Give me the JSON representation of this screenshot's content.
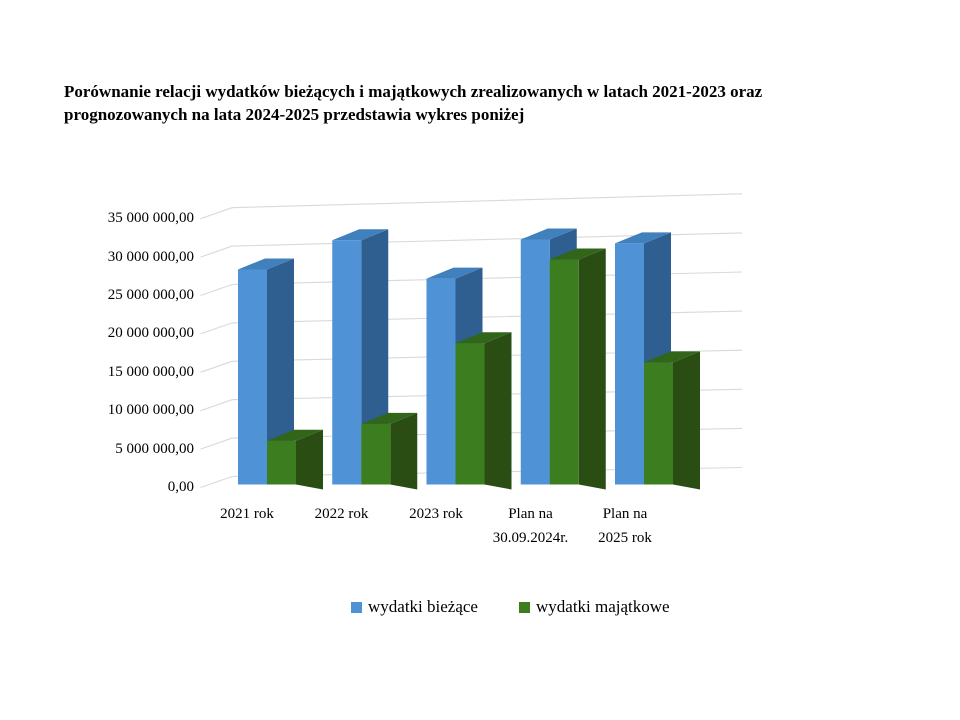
{
  "page": {
    "background": "#ffffff",
    "title_lines": [
      "Porównanie relacji wydatków bieżących i majątkowych zrealizowanych w latach 2021-2023 oraz",
      "prognozowanych na lata 2024-2025 przedstawia wykres poniżej"
    ]
  },
  "chart_data": {
    "type": "bar",
    "style": "3d-clustered-column",
    "title": "",
    "xlabel": "",
    "ylabel": "",
    "categories": [
      "2021 rok",
      "2022 rok",
      "2023 rok",
      "Plan na\n30.09.2024r.",
      "Plan na\n2025 rok"
    ],
    "series": [
      {
        "name": "wydatki bieżące",
        "color": "#4F92D5",
        "color_top": "#4080BC",
        "color_side": "#2F5E90",
        "values": [
          28000000,
          31800000,
          26800000,
          31900000,
          31400000
        ]
      },
      {
        "name": "wydatki majątkowe",
        "color": "#3C7D20",
        "color_top": "#30651A",
        "color_side": "#2A4D13",
        "values": [
          5700000,
          7900000,
          18400000,
          29300000,
          15900000
        ]
      }
    ],
    "y_ticks": [
      "35 000 000,00",
      "30 000 000,00",
      "25 000 000,00",
      "20 000 000,00",
      "15 000 000,00",
      "10 000 000,00",
      "5 000 000,00",
      "0,00"
    ],
    "ylim": [
      0,
      35000000
    ],
    "y_tick_step": 5000000,
    "grid": true,
    "gridline_color": "#D9D9D9",
    "legend_position": "bottom"
  }
}
